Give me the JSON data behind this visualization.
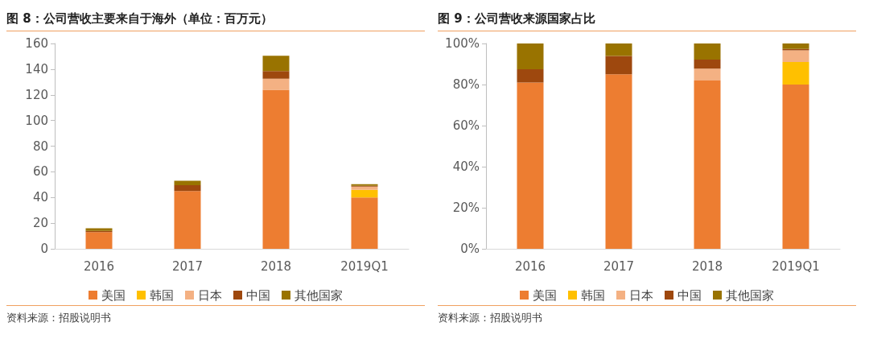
{
  "chart_data": [
    {
      "type": "bar",
      "title": "图 8：公司营收主要来自于海外（单位：百万元）",
      "stacked": true,
      "categories": [
        "2016",
        "2017",
        "2018",
        "2019Q1"
      ],
      "series": [
        {
          "name": "美国",
          "color": "#ed7d31",
          "values": [
            13,
            45,
            124,
            40
          ]
        },
        {
          "name": "韩国",
          "color": "#ffc000",
          "values": [
            0,
            0,
            0,
            6
          ]
        },
        {
          "name": "日本",
          "color": "#f4b183",
          "values": [
            0,
            0,
            8.5,
            2.5
          ]
        },
        {
          "name": "中国",
          "color": "#9e480e",
          "values": [
            1,
            4.5,
            6,
            0.6
          ]
        },
        {
          "name": "其他国家",
          "color": "#997300",
          "values": [
            2,
            3.5,
            12,
            1.2
          ]
        }
      ],
      "ylim": [
        0,
        160
      ],
      "yticks": [
        0,
        20,
        40,
        60,
        80,
        100,
        120,
        140,
        160
      ],
      "grid": false,
      "legend": "bottom",
      "annotations": [
        "资料来源：招股说明书"
      ]
    },
    {
      "type": "bar",
      "title": "图 9：公司营收来源国家占比",
      "stacked": true,
      "categories": [
        "2016",
        "2017",
        "2018",
        "2019Q1"
      ],
      "series": [
        {
          "name": "美国",
          "color": "#ed7d31",
          "values": [
            81,
            85,
            82,
            80
          ]
        },
        {
          "name": "韩国",
          "color": "#ffc000",
          "values": [
            0,
            0,
            0,
            11
          ]
        },
        {
          "name": "日本",
          "color": "#f4b183",
          "values": [
            0,
            0,
            5.7,
            5.7
          ]
        },
        {
          "name": "中国",
          "color": "#9e480e",
          "values": [
            6.5,
            8.9,
            4.5,
            0.7
          ]
        },
        {
          "name": "其他国家",
          "color": "#997300",
          "values": [
            12.5,
            6.1,
            7.8,
            2.6
          ]
        }
      ],
      "ylim": [
        0,
        100
      ],
      "yticks": [
        {
          "value": 0,
          "label": "0%"
        },
        {
          "value": 20,
          "label": "20%"
        },
        {
          "value": 40,
          "label": "40%"
        },
        {
          "value": 60,
          "label": "60%"
        },
        {
          "value": 80,
          "label": "80%"
        },
        {
          "value": 100,
          "label": "100%"
        }
      ],
      "grid": false,
      "legend": "bottom",
      "annotations": [
        "资料来源：招股说明书"
      ]
    }
  ]
}
